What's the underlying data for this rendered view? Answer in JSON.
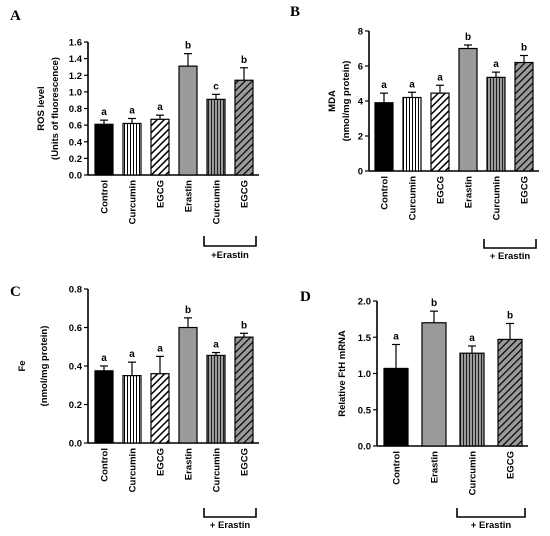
{
  "chart_data": [
    {
      "type": "bar",
      "panel": "A",
      "ylabel_lines": [
        "ROS level",
        "(Units of fluorescence)"
      ],
      "ylim": [
        0,
        1.6
      ],
      "yticks": [
        "0.0",
        "0.2",
        "0.4",
        "0.6",
        "0.8",
        "1.0",
        "1.2",
        "1.4",
        "1.6"
      ],
      "tick_values": [
        0,
        0.2,
        0.4,
        0.6,
        0.8,
        1.0,
        1.2,
        1.4,
        1.6
      ],
      "categories": [
        "Control",
        "Curcumin",
        "EGCG",
        "Erastin",
        "Curcumin",
        "EGCG"
      ],
      "values": [
        0.61,
        0.62,
        0.67,
        1.31,
        0.91,
        1.14
      ],
      "errors": [
        0.05,
        0.06,
        0.05,
        0.15,
        0.06,
        0.15
      ],
      "significance": [
        "a",
        "a",
        "a",
        "b",
        "c",
        "b"
      ],
      "patterns": [
        "black",
        "white-vertical",
        "black-diagonal",
        "gray",
        "gray-vertical",
        "gray-diagonal"
      ],
      "group_label": "+Erastin"
    },
    {
      "type": "bar",
      "panel": "B",
      "ylabel_lines": [
        "MDA",
        "(nmol/mg protein)"
      ],
      "ylim": [
        0,
        8
      ],
      "yticks": [
        "0",
        "2",
        "4",
        "6",
        "8"
      ],
      "tick_values": [
        0,
        2,
        4,
        6,
        8
      ],
      "categories": [
        "Control",
        "Curcumin",
        "EGCG",
        "Erastin",
        "Curcumin",
        "EGCG"
      ],
      "values": [
        3.9,
        4.2,
        4.45,
        7.0,
        5.35,
        6.2
      ],
      "errors": [
        0.55,
        0.3,
        0.45,
        0.2,
        0.3,
        0.4
      ],
      "significance": [
        "a",
        "a",
        "a",
        "b",
        "a",
        "b"
      ],
      "patterns": [
        "black",
        "white-vertical",
        "black-diagonal",
        "gray",
        "gray-vertical",
        "gray-diagonal"
      ],
      "group_label": "+ Erastin"
    },
    {
      "type": "bar",
      "panel": "C",
      "ylabel_lines": [
        "Fe",
        "(nmol/mg protein)"
      ],
      "ylim": [
        0,
        0.8
      ],
      "yticks": [
        "0.0",
        "0.2",
        "0.4",
        "0.6",
        "0.8"
      ],
      "tick_values": [
        0,
        0.2,
        0.4,
        0.6,
        0.8
      ],
      "categories": [
        "Control",
        "Curcumin",
        "EGCG",
        "Erastin",
        "Curcumin",
        "EGCG"
      ],
      "values": [
        0.375,
        0.35,
        0.36,
        0.6,
        0.455,
        0.55
      ],
      "errors": [
        0.025,
        0.07,
        0.09,
        0.05,
        0.015,
        0.02
      ],
      "significance": [
        "a",
        "a",
        "a",
        "b",
        "a",
        "b"
      ],
      "patterns": [
        "black",
        "white-vertical",
        "black-diagonal",
        "gray",
        "gray-vertical",
        "gray-diagonal"
      ],
      "group_label": "+ Erastin"
    },
    {
      "type": "bar",
      "panel": "D",
      "ylabel_lines": [
        "Relative FtH mRNA"
      ],
      "ylim": [
        0,
        2.0
      ],
      "yticks": [
        "0.0",
        "0.5",
        "1.0",
        "1.5",
        "2.0"
      ],
      "tick_values": [
        0,
        0.5,
        1.0,
        1.5,
        2.0
      ],
      "categories": [
        "Control",
        "Erastin",
        "Curcumin",
        "EGCG"
      ],
      "values": [
        1.07,
        1.7,
        1.28,
        1.47
      ],
      "errors": [
        0.33,
        0.16,
        0.1,
        0.22
      ],
      "significance": [
        "a",
        "b",
        "a",
        "b"
      ],
      "patterns": [
        "black",
        "gray",
        "gray-vertical",
        "gray-diagonal"
      ],
      "group_label": "+ Erastin"
    }
  ],
  "colors": {
    "black_bar": "#000000",
    "gray_bar": "#9a9a9a",
    "white_bar": "#ffffff",
    "stroke": "#000000"
  }
}
